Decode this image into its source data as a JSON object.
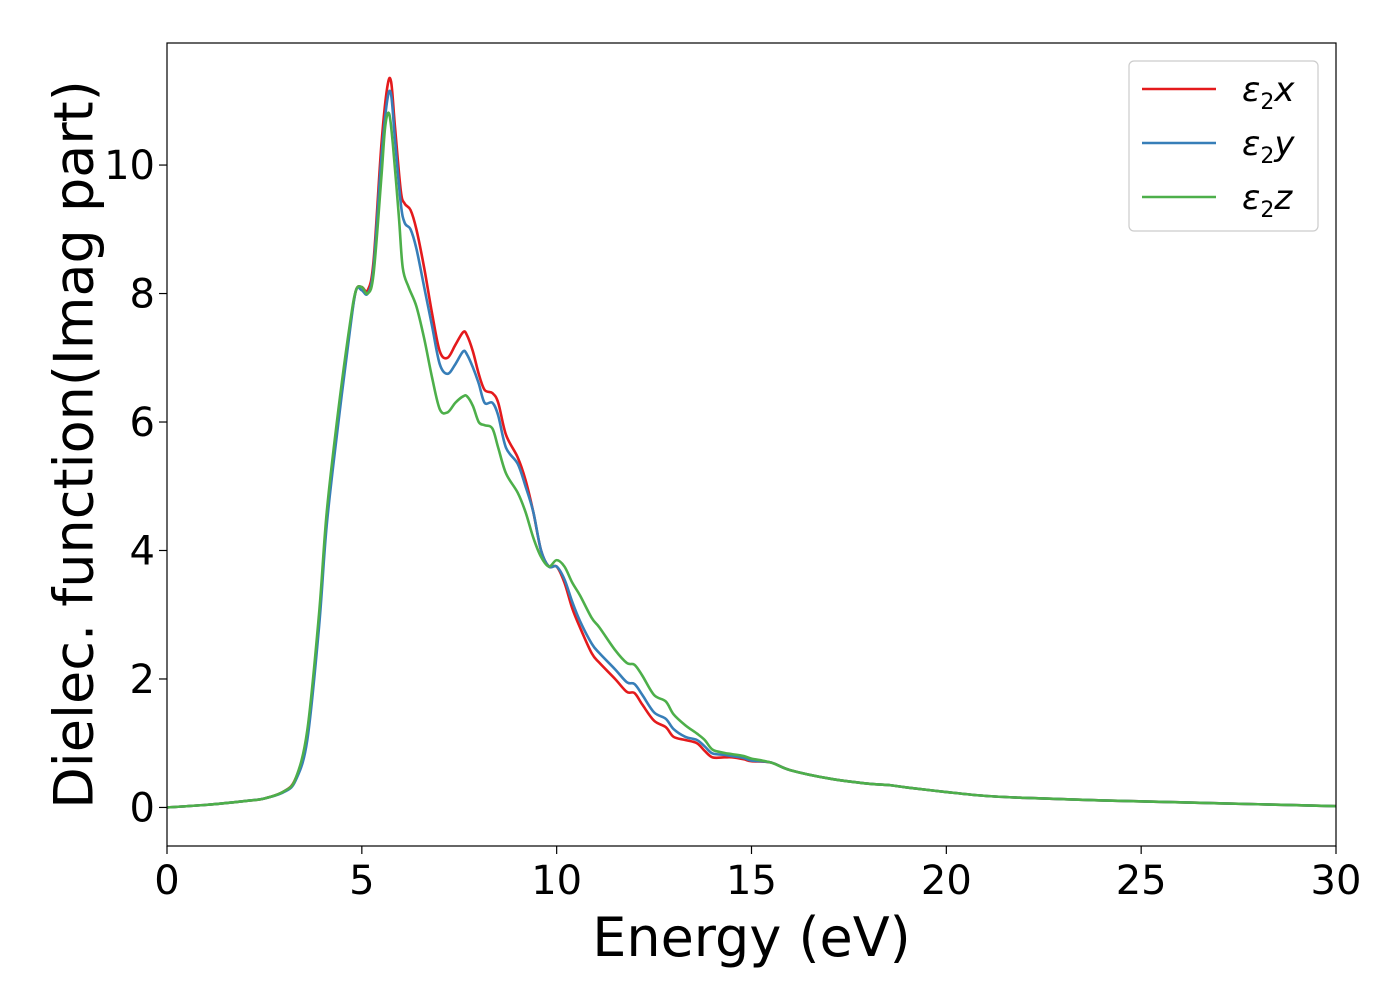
{
  "chart_data": {
    "type": "line",
    "title": "",
    "xlabel": "Energy (eV)",
    "ylabel": "Dielec. function(Imag part)",
    "xlim": [
      0,
      30
    ],
    "ylim": [
      -0.6,
      11.9
    ],
    "xticks": [
      0,
      5,
      10,
      15,
      20,
      25,
      30
    ],
    "yticks": [
      0,
      2,
      4,
      6,
      8,
      10
    ],
    "xtick_labels": [
      "0",
      "5",
      "10",
      "15",
      "20",
      "25",
      "30"
    ],
    "ytick_labels": [
      "0",
      "2",
      "4",
      "6",
      "8",
      "10"
    ],
    "grid": false,
    "legend_position": "top-right",
    "series": [
      {
        "name": "ε2x",
        "legend_base": "ε",
        "legend_sub": "2",
        "legend_tail": "x",
        "color": "#e41a1c",
        "x": [
          0,
          1,
          2,
          2.5,
          3,
          3.3,
          3.6,
          3.9,
          4.1,
          4.4,
          4.7,
          4.85,
          5.0,
          5.15,
          5.3,
          5.5,
          5.65,
          5.75,
          5.85,
          6.0,
          6.1,
          6.25,
          6.4,
          6.6,
          6.8,
          7.0,
          7.2,
          7.4,
          7.6,
          7.7,
          7.85,
          8.0,
          8.15,
          8.35,
          8.5,
          8.7,
          9.0,
          9.2,
          9.4,
          9.6,
          9.8,
          10.0,
          10.2,
          10.4,
          10.6,
          10.9,
          11.1,
          11.5,
          11.8,
          12.0,
          12.2,
          12.5,
          12.8,
          13.0,
          13.3,
          13.6,
          13.8,
          14.0,
          14.3,
          14.5,
          14.8,
          15.0,
          15.5,
          16.0,
          17.0,
          18.0,
          18.5,
          19.0,
          20.0,
          21.0,
          22.0,
          24.0,
          26.0,
          28.0,
          30.0
        ],
        "y": [
          0,
          0.04,
          0.1,
          0.14,
          0.25,
          0.45,
          1.1,
          2.9,
          4.5,
          6.1,
          7.5,
          8.05,
          8.1,
          8.05,
          8.5,
          10.3,
          11.2,
          11.3,
          10.6,
          9.6,
          9.4,
          9.3,
          9.0,
          8.4,
          7.7,
          7.1,
          7.0,
          7.2,
          7.4,
          7.35,
          7.1,
          6.75,
          6.5,
          6.45,
          6.3,
          5.8,
          5.45,
          5.1,
          4.6,
          4.0,
          3.75,
          3.75,
          3.5,
          3.1,
          2.8,
          2.4,
          2.25,
          2.0,
          1.8,
          1.78,
          1.6,
          1.35,
          1.25,
          1.1,
          1.05,
          1.0,
          0.88,
          0.78,
          0.78,
          0.78,
          0.75,
          0.72,
          0.7,
          0.58,
          0.45,
          0.37,
          0.35,
          0.31,
          0.24,
          0.18,
          0.15,
          0.11,
          0.08,
          0.05,
          0.02
        ]
      },
      {
        "name": "ε2y",
        "legend_base": "ε",
        "legend_sub": "2",
        "legend_tail": "y",
        "color": "#377eb8",
        "x": [
          0,
          1,
          2,
          2.5,
          3,
          3.3,
          3.6,
          3.9,
          4.1,
          4.4,
          4.7,
          4.85,
          5.0,
          5.15,
          5.3,
          5.5,
          5.65,
          5.75,
          5.85,
          6.0,
          6.1,
          6.25,
          6.4,
          6.6,
          6.8,
          7.0,
          7.2,
          7.4,
          7.6,
          7.7,
          7.85,
          8.0,
          8.15,
          8.35,
          8.5,
          8.7,
          9.0,
          9.2,
          9.4,
          9.6,
          9.8,
          10.0,
          10.2,
          10.4,
          10.6,
          10.9,
          11.1,
          11.5,
          11.8,
          12.0,
          12.2,
          12.5,
          12.8,
          13.0,
          13.3,
          13.6,
          13.8,
          14.0,
          14.3,
          14.5,
          14.8,
          15.0,
          15.5,
          16.0,
          17.0,
          18.0,
          18.5,
          19.0,
          20.0,
          21.0,
          22.0,
          24.0,
          26.0,
          28.0,
          30.0
        ],
        "y": [
          0,
          0.04,
          0.1,
          0.14,
          0.24,
          0.42,
          1.05,
          2.8,
          4.4,
          6.0,
          7.45,
          8.05,
          8.05,
          8.0,
          8.4,
          10.1,
          11.0,
          11.1,
          10.4,
          9.4,
          9.1,
          9.0,
          8.7,
          8.1,
          7.5,
          6.9,
          6.75,
          6.9,
          7.1,
          7.05,
          6.85,
          6.6,
          6.3,
          6.3,
          6.1,
          5.6,
          5.35,
          5.0,
          4.6,
          4.0,
          3.75,
          3.75,
          3.55,
          3.2,
          2.9,
          2.55,
          2.4,
          2.15,
          1.95,
          1.92,
          1.75,
          1.48,
          1.38,
          1.22,
          1.1,
          1.05,
          0.95,
          0.84,
          0.82,
          0.8,
          0.77,
          0.73,
          0.7,
          0.58,
          0.45,
          0.37,
          0.35,
          0.31,
          0.24,
          0.18,
          0.15,
          0.11,
          0.08,
          0.05,
          0.02
        ]
      },
      {
        "name": "ε2z",
        "legend_base": "ε",
        "legend_sub": "2",
        "legend_tail": "z",
        "color": "#4daf4a",
        "x": [
          0,
          1,
          2,
          2.5,
          3,
          3.3,
          3.6,
          3.9,
          4.1,
          4.4,
          4.7,
          4.85,
          5.0,
          5.15,
          5.3,
          5.5,
          5.6,
          5.7,
          5.8,
          5.95,
          6.05,
          6.2,
          6.4,
          6.6,
          6.8,
          7.0,
          7.2,
          7.4,
          7.6,
          7.7,
          7.85,
          8.0,
          8.15,
          8.35,
          8.5,
          8.7,
          9.0,
          9.2,
          9.4,
          9.6,
          9.8,
          10.0,
          10.2,
          10.4,
          10.6,
          10.9,
          11.1,
          11.5,
          11.8,
          12.0,
          12.2,
          12.5,
          12.8,
          13.0,
          13.3,
          13.6,
          13.8,
          14.0,
          14.3,
          14.5,
          14.8,
          15.0,
          15.5,
          16.0,
          17.0,
          18.0,
          18.5,
          19.0,
          20.0,
          21.0,
          22.0,
          24.0,
          26.0,
          28.0,
          30.0
        ],
        "y": [
          0,
          0.04,
          0.1,
          0.14,
          0.25,
          0.45,
          1.2,
          3.0,
          4.6,
          6.2,
          7.55,
          8.05,
          8.1,
          8.0,
          8.3,
          9.8,
          10.6,
          10.8,
          10.3,
          9.2,
          8.4,
          8.1,
          7.8,
          7.3,
          6.7,
          6.2,
          6.15,
          6.3,
          6.4,
          6.4,
          6.25,
          6.0,
          5.95,
          5.9,
          5.6,
          5.2,
          4.9,
          4.6,
          4.2,
          3.9,
          3.75,
          3.85,
          3.75,
          3.5,
          3.3,
          2.95,
          2.8,
          2.45,
          2.25,
          2.22,
          2.05,
          1.75,
          1.65,
          1.45,
          1.28,
          1.15,
          1.05,
          0.9,
          0.85,
          0.83,
          0.8,
          0.76,
          0.7,
          0.58,
          0.45,
          0.37,
          0.35,
          0.31,
          0.24,
          0.18,
          0.15,
          0.11,
          0.08,
          0.05,
          0.02
        ]
      }
    ]
  }
}
